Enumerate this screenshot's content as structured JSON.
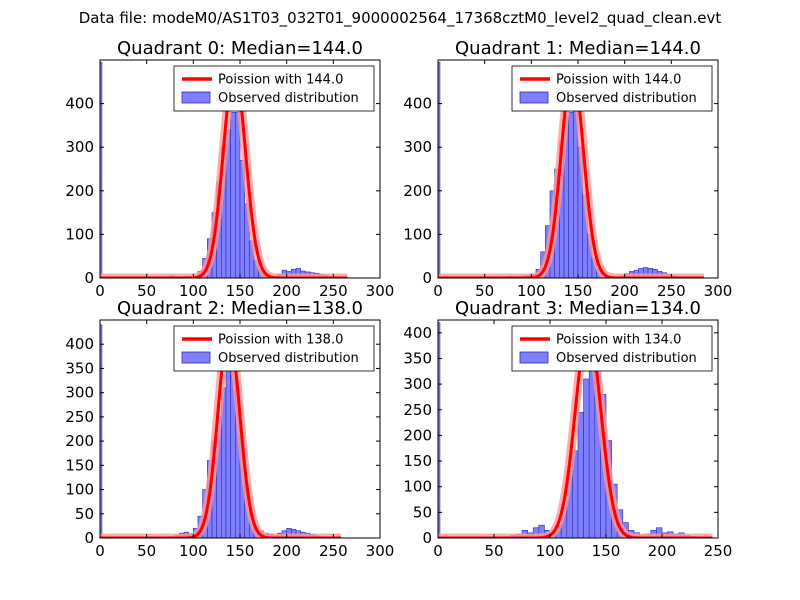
{
  "figure_title": "Data file: modeM0/AS1T03_032T01_9000002564_17368cztM0_level2_quad_clean.evt",
  "colors": {
    "bar_fill": "#8080ff",
    "bar_edge": "#2a2ab0",
    "poisson": "#ff0000",
    "poisson_glow": "#ff9999"
  },
  "chart_data": [
    {
      "type": "bar",
      "title": "Quadrant 0: Median=144.0",
      "xlabel": "",
      "ylabel": "",
      "xlim": [
        0,
        300
      ],
      "ylim": [
        0,
        500
      ],
      "xticks": [
        0,
        50,
        100,
        150,
        200,
        250,
        300
      ],
      "yticks": [
        0,
        100,
        200,
        300,
        400
      ],
      "legend": {
        "position": "top-right",
        "entries": [
          "Poission with 144.0",
          "Observed distribution"
        ]
      },
      "median": 144,
      "bin_width": 5,
      "edge_value": 495,
      "series": [
        {
          "name": "Observed distribution",
          "type": "bar",
          "x": [
            75,
            80,
            85,
            90,
            95,
            100,
            105,
            110,
            115,
            120,
            125,
            130,
            135,
            140,
            145,
            150,
            155,
            160,
            165,
            170,
            175,
            180,
            185,
            190,
            195,
            200,
            205,
            210,
            215,
            220,
            225,
            230,
            235,
            240,
            245,
            250
          ],
          "values": [
            5,
            2,
            3,
            4,
            3,
            5,
            15,
            45,
            90,
            150,
            220,
            300,
            340,
            380,
            380,
            270,
            170,
            85,
            40,
            20,
            10,
            5,
            4,
            8,
            18,
            15,
            20,
            22,
            16,
            14,
            12,
            11,
            8,
            6,
            3,
            2
          ]
        },
        {
          "name": "Poission with 144.0",
          "type": "line",
          "peak": 475,
          "xrange": [
            0,
            265
          ]
        }
      ]
    },
    {
      "type": "bar",
      "title": "Quadrant 1: Median=144.0",
      "xlabel": "",
      "ylabel": "",
      "xlim": [
        0,
        300
      ],
      "ylim": [
        0,
        500
      ],
      "xticks": [
        0,
        50,
        100,
        150,
        200,
        250,
        300
      ],
      "yticks": [
        0,
        100,
        200,
        300,
        400
      ],
      "legend": {
        "position": "top-right",
        "entries": [
          "Poission with 144.0",
          "Observed distribution"
        ]
      },
      "median": 144,
      "bin_width": 5,
      "edge_value": 495,
      "series": [
        {
          "name": "Observed distribution",
          "type": "bar",
          "x": [
            75,
            80,
            85,
            90,
            95,
            100,
            105,
            110,
            115,
            120,
            125,
            130,
            135,
            140,
            145,
            150,
            155,
            160,
            165,
            170,
            175,
            180,
            185,
            190,
            195,
            200,
            205,
            210,
            215,
            220,
            225,
            230,
            235,
            240,
            245,
            250,
            255,
            260
          ],
          "values": [
            4,
            3,
            3,
            5,
            6,
            8,
            20,
            60,
            120,
            200,
            250,
            310,
            370,
            380,
            420,
            300,
            190,
            100,
            45,
            20,
            10,
            4,
            3,
            2,
            5,
            10,
            15,
            18,
            22,
            24,
            22,
            20,
            15,
            12,
            8,
            5,
            3,
            2
          ]
        },
        {
          "name": "Poission with 144.0",
          "type": "line",
          "peak": 475,
          "xrange": [
            0,
            285
          ]
        }
      ]
    },
    {
      "type": "bar",
      "title": "Quadrant 2: Median=138.0",
      "xlabel": "",
      "ylabel": "",
      "xlim": [
        0,
        300
      ],
      "ylim": [
        0,
        450
      ],
      "xticks": [
        0,
        50,
        100,
        150,
        200,
        250,
        300
      ],
      "yticks": [
        0,
        50,
        100,
        150,
        200,
        250,
        300,
        350,
        400
      ],
      "legend": {
        "position": "top-right",
        "entries": [
          "Poission with 138.0",
          "Observed distribution"
        ]
      },
      "median": 138,
      "bin_width": 5,
      "edge_value": 440,
      "series": [
        {
          "name": "Observed distribution",
          "type": "bar",
          "x": [
            80,
            85,
            90,
            95,
            100,
            105,
            110,
            115,
            120,
            125,
            130,
            135,
            140,
            145,
            150,
            155,
            160,
            165,
            170,
            175,
            180,
            185,
            190,
            195,
            200,
            205,
            210,
            215,
            220,
            225,
            230,
            235
          ],
          "values": [
            5,
            10,
            12,
            8,
            20,
            45,
            100,
            160,
            200,
            250,
            310,
            370,
            420,
            310,
            210,
            110,
            50,
            25,
            15,
            10,
            8,
            5,
            10,
            15,
            20,
            18,
            15,
            12,
            10,
            8,
            5,
            3
          ]
        },
        {
          "name": "Poission with 138.0",
          "type": "line",
          "peak": 425,
          "xrange": [
            0,
            258
          ]
        }
      ]
    },
    {
      "type": "bar",
      "title": "Quadrant 3: Median=134.0",
      "xlabel": "",
      "ylabel": "",
      "xlim": [
        0,
        250
      ],
      "ylim": [
        0,
        425
      ],
      "xticks": [
        0,
        50,
        100,
        150,
        200,
        250
      ],
      "yticks": [
        0,
        50,
        100,
        150,
        200,
        250,
        300,
        350,
        400
      ],
      "legend": {
        "position": "top-right",
        "entries": [
          "Poission with 134.0",
          "Observed distribution"
        ]
      },
      "median": 134,
      "bin_width": 5,
      "edge_value": 420,
      "series": [
        {
          "name": "Observed distribution",
          "type": "bar",
          "x": [
            65,
            70,
            75,
            80,
            85,
            90,
            95,
            100,
            105,
            110,
            115,
            120,
            125,
            130,
            135,
            140,
            145,
            150,
            155,
            160,
            165,
            170,
            175,
            180,
            185,
            190,
            195,
            200,
            205,
            210,
            215,
            220,
            225
          ],
          "values": [
            5,
            8,
            15,
            10,
            20,
            25,
            15,
            10,
            25,
            60,
            130,
            170,
            245,
            310,
            360,
            330,
            280,
            190,
            105,
            55,
            30,
            15,
            10,
            5,
            8,
            15,
            20,
            10,
            12,
            8,
            10,
            5,
            3
          ]
        },
        {
          "name": "Poission with 134.0",
          "type": "line",
          "peak": 405,
          "xrange": [
            0,
            245
          ]
        }
      ]
    }
  ]
}
